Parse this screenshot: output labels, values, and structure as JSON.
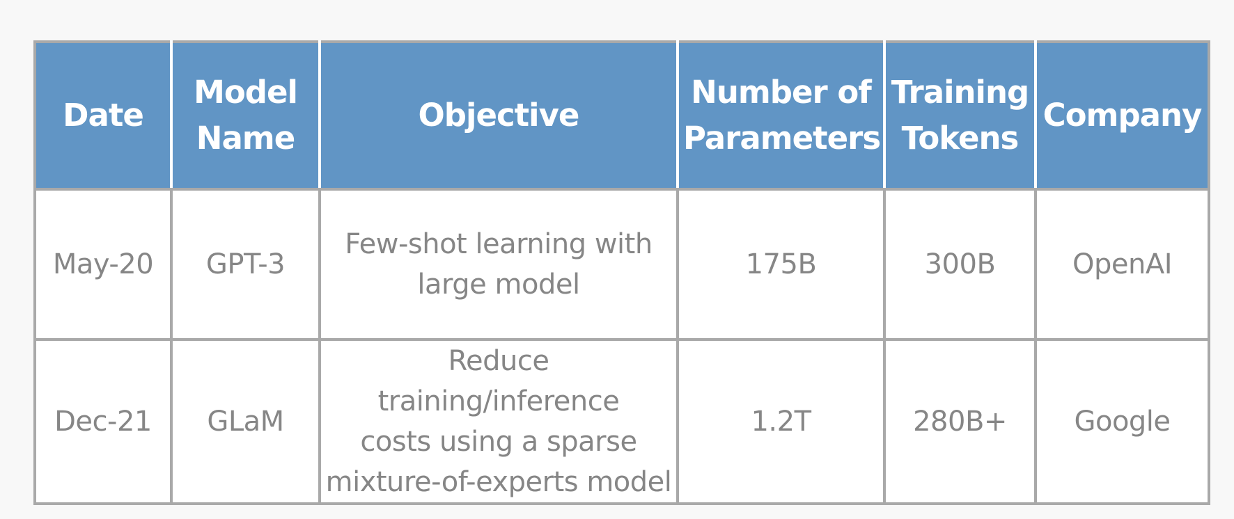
{
  "table": {
    "headers": {
      "date": [
        "Date"
      ],
      "model": [
        "Model",
        "Name"
      ],
      "objective": [
        "Objective"
      ],
      "params": [
        "Number of",
        "Parameters"
      ],
      "tokens": [
        "Training",
        "Tokens"
      ],
      "company": [
        "Company"
      ]
    },
    "rows": [
      {
        "date": "May-20",
        "model": "GPT-3",
        "objective": [
          "Few-shot learning with",
          "large model"
        ],
        "params": "175B",
        "tokens": "300B",
        "company": "OpenAI"
      },
      {
        "date": "Dec-21",
        "model": "GLaM",
        "objective": [
          "Reduce training/inference",
          "costs using a sparse",
          "mixture-of-experts model"
        ],
        "params": "1.2T",
        "tokens": "280B+",
        "company": "Google"
      }
    ]
  },
  "colors": {
    "header_bg": "#6195c5",
    "header_text": "#ffffff",
    "cell_text": "#868686",
    "border": "#a9a9a9"
  }
}
